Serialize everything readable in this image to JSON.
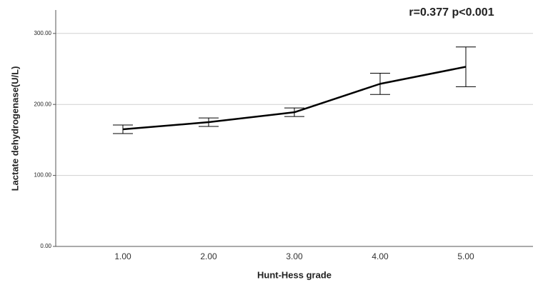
{
  "chart_data": {
    "type": "line",
    "annotation": "r=0.377 p<0.001",
    "x_label": "Hunt-Hess grade",
    "y_label": "Lactate dehydrogenase(U/L)",
    "categories": [
      "1.00",
      "2.00",
      "3.00",
      "4.00",
      "5.00"
    ],
    "series": [
      {
        "color": "#000000",
        "values": [
          165,
          175,
          189,
          229,
          253
        ],
        "errors": [
          6,
          6,
          6,
          15,
          28
        ]
      }
    ],
    "ylim": [
      0,
      333
    ],
    "yticks": [
      {
        "value": 0,
        "label": "0.00"
      },
      {
        "value": 100,
        "label": "100.00"
      },
      {
        "value": 200,
        "label": "200.00"
      },
      {
        "value": 300,
        "label": "300.00"
      }
    ],
    "grid": true
  }
}
